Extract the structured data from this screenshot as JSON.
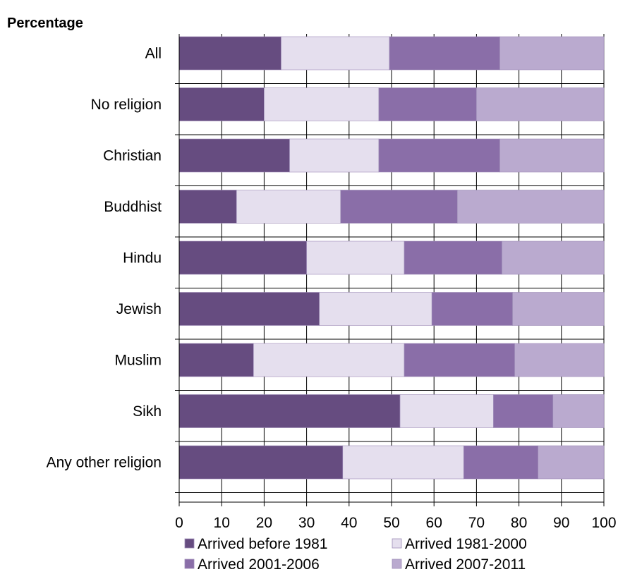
{
  "chart_data": {
    "type": "bar",
    "orientation": "horizontal",
    "stacked": true,
    "title": "Percentage",
    "categories": [
      "All",
      "No religion",
      "Christian",
      "Buddhist",
      "Hindu",
      "Jewish",
      "Muslim",
      "Sikh",
      "Any other religion"
    ],
    "series": [
      {
        "name": "Arrived before 1981",
        "color": "#664c80",
        "values": [
          24,
          20,
          26,
          13.5,
          30,
          33,
          17.5,
          52,
          38.5
        ]
      },
      {
        "name": "Arrived 1981-2000",
        "color": "#e5dfee",
        "values": [
          25.5,
          27,
          21,
          24.5,
          23,
          26.5,
          35.5,
          22,
          28.5
        ]
      },
      {
        "name": "Arrived 2001-2006",
        "color": "#8a6ea8",
        "values": [
          26,
          23,
          28.5,
          27.5,
          23,
          19,
          26,
          14,
          17.5
        ]
      },
      {
        "name": "Arrived 2007-2011",
        "color": "#baaacf",
        "values": [
          24.5,
          30,
          24.5,
          34.5,
          24,
          21.5,
          21,
          12,
          15.5
        ]
      }
    ],
    "xlim": [
      0,
      100
    ],
    "xticks": [
      "0",
      "10",
      "20",
      "30",
      "40",
      "50",
      "60",
      "70",
      "80",
      "90",
      "100"
    ],
    "grid": true,
    "legend_position": "bottom"
  }
}
